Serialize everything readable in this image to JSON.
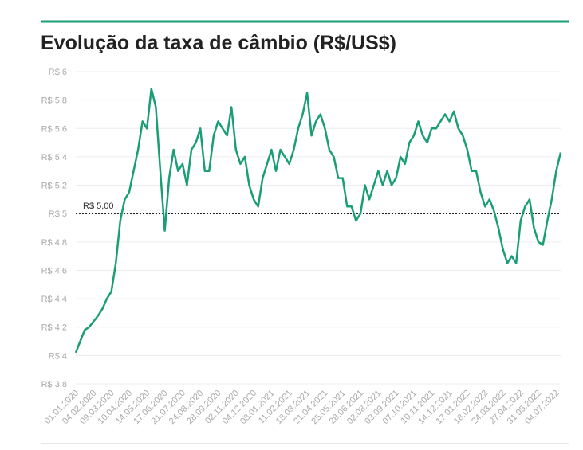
{
  "chart_data": {
    "type": "line",
    "title": "Evolução da taxa de câmbio (R$/US$)",
    "categories": [
      "01.01.2020",
      null,
      null,
      null,
      "04.02.2020",
      null,
      null,
      null,
      "09.03.2020",
      null,
      null,
      null,
      "10.04.2020",
      null,
      null,
      null,
      "14.05.2020",
      null,
      null,
      null,
      "17.06.2020",
      null,
      null,
      null,
      "21.07.2020",
      null,
      null,
      null,
      "24.08.2020",
      null,
      null,
      null,
      "28.09.2020",
      null,
      null,
      null,
      "02.11.2020",
      null,
      null,
      null,
      "04.12.2020",
      null,
      null,
      null,
      "08.01.2021",
      null,
      null,
      null,
      "11.02.2021",
      null,
      null,
      null,
      "18.03.2021",
      null,
      null,
      null,
      "21.04.2021",
      null,
      null,
      null,
      "25.05.2021",
      null,
      null,
      null,
      "28.06.2021",
      null,
      null,
      null,
      "02.08.2021",
      null,
      null,
      null,
      "03.09.2021",
      null,
      null,
      null,
      "07.10.2021",
      null,
      null,
      null,
      "10.11.2021",
      null,
      null,
      null,
      "14.12.2021",
      null,
      null,
      null,
      "17.01.2022",
      null,
      null,
      null,
      "18.02.2022",
      null,
      null,
      null,
      "24.03.2022",
      null,
      null,
      null,
      "27.04.2022",
      null,
      null,
      null,
      "31.05.2022",
      null,
      null,
      null,
      "04.07.2022",
      null
    ],
    "series": [
      {
        "color": "#1a9e76",
        "values": [
          4.02,
          4.1,
          4.18,
          4.2,
          4.24,
          4.28,
          4.33,
          4.4,
          4.45,
          4.65,
          4.95,
          5.1,
          5.15,
          5.3,
          5.45,
          5.65,
          5.6,
          5.88,
          5.75,
          5.3,
          4.88,
          5.25,
          5.45,
          5.3,
          5.35,
          5.2,
          5.45,
          5.5,
          5.6,
          5.3,
          5.3,
          5.55,
          5.65,
          5.6,
          5.55,
          5.75,
          5.45,
          5.35,
          5.4,
          5.2,
          5.1,
          5.05,
          5.25,
          5.35,
          5.45,
          5.3,
          5.45,
          5.4,
          5.35,
          5.45,
          5.6,
          5.7,
          5.85,
          5.55,
          5.65,
          5.7,
          5.6,
          5.45,
          5.4,
          5.25,
          5.25,
          5.05,
          5.05,
          4.95,
          5.0,
          5.2,
          5.1,
          5.2,
          5.3,
          5.2,
          5.3,
          5.2,
          5.25,
          5.4,
          5.35,
          5.5,
          5.55,
          5.65,
          5.55,
          5.5,
          5.6,
          5.6,
          5.65,
          5.7,
          5.65,
          5.72,
          5.6,
          5.55,
          5.45,
          5.3,
          5.3,
          5.15,
          5.05,
          5.1,
          5.02,
          4.9,
          4.75,
          4.65,
          4.7,
          4.65,
          4.95,
          5.05,
          5.1,
          4.9,
          4.8,
          4.78,
          4.95,
          5.1,
          5.3,
          5.43
        ]
      }
    ],
    "ylim": [
      3.8,
      6
    ],
    "yticks": [
      {
        "value": 3.8,
        "label": "R$ 3,8"
      },
      {
        "value": 4,
        "label": "R$ 4"
      },
      {
        "value": 4.2,
        "label": "R$ 4,2"
      },
      {
        "value": 4.4,
        "label": "R$ 4,4"
      },
      {
        "value": 4.6,
        "label": "R$ 4,6"
      },
      {
        "value": 4.8,
        "label": "R$ 4,8"
      },
      {
        "value": 5,
        "label": "R$ 5"
      },
      {
        "value": 5.2,
        "label": "R$ 5,2"
      },
      {
        "value": 5.4,
        "label": "R$ 5,4"
      },
      {
        "value": 5.6,
        "label": "R$ 5,6"
      },
      {
        "value": 5.8,
        "label": "R$ 5,8"
      },
      {
        "value": 6,
        "label": "R$ 6"
      }
    ],
    "grid": true,
    "reference_line": {
      "value": 5,
      "label": "R$ 5,00"
    }
  }
}
